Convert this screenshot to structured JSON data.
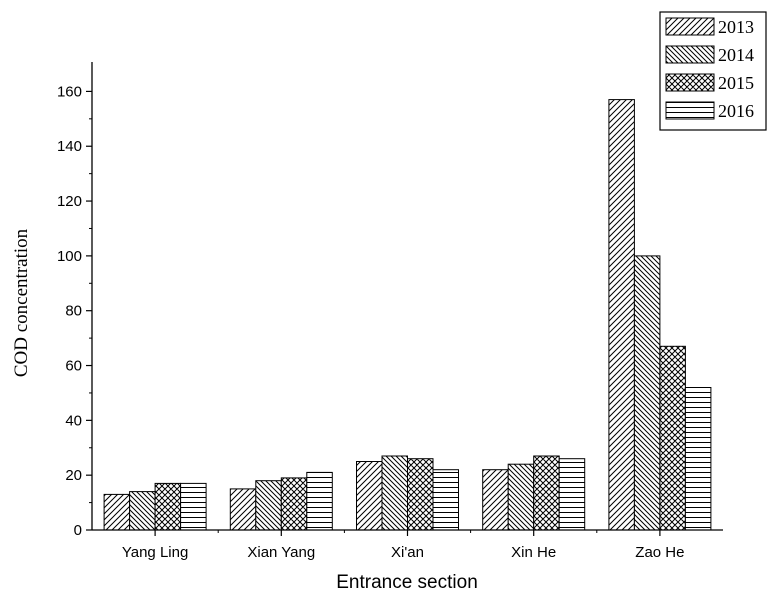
{
  "chart_data": {
    "type": "bar",
    "title": "",
    "xlabel": "Entrance section",
    "ylabel": "COD concentration",
    "categories": [
      "Yang Ling",
      "Xian Yang",
      "Xi'an",
      "Xin He",
      "Zao He"
    ],
    "series": [
      {
        "name": "2013",
        "pattern": "diag-right",
        "values": [
          13,
          15,
          25,
          22,
          157
        ]
      },
      {
        "name": "2014",
        "pattern": "diag-left",
        "values": [
          14,
          18,
          27,
          24,
          100
        ]
      },
      {
        "name": "2015",
        "pattern": "crosshatch",
        "values": [
          17,
          19,
          26,
          27,
          67
        ]
      },
      {
        "name": "2016",
        "pattern": "horizontal",
        "values": [
          17,
          21,
          22,
          26,
          52
        ]
      }
    ],
    "ylim": [
      0,
      170
    ],
    "yticks": [
      0,
      20,
      40,
      60,
      80,
      100,
      120,
      140,
      160
    ],
    "grid": false,
    "legend_position": "top-right",
    "bar_fill": "#ffffff",
    "stroke_color": "#000000"
  }
}
